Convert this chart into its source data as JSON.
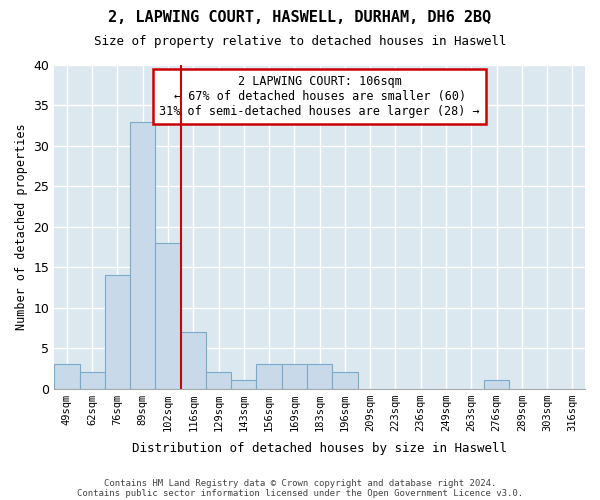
{
  "title": "2, LAPWING COURT, HASWELL, DURHAM, DH6 2BQ",
  "subtitle": "Size of property relative to detached houses in Haswell",
  "xlabel": "Distribution of detached houses by size in Haswell",
  "ylabel": "Number of detached properties",
  "bar_color": "#c8daea",
  "bar_edge_color": "#7aaac8",
  "background_color": "#dce8f0",
  "grid_color": "#ffffff",
  "bins": [
    "49sqm",
    "62sqm",
    "76sqm",
    "89sqm",
    "102sqm",
    "116sqm",
    "129sqm",
    "143sqm",
    "156sqm",
    "169sqm",
    "183sqm",
    "196sqm",
    "209sqm",
    "223sqm",
    "236sqm",
    "249sqm",
    "263sqm",
    "276sqm",
    "289sqm",
    "303sqm",
    "316sqm"
  ],
  "values": [
    3,
    2,
    14,
    33,
    18,
    7,
    2,
    1,
    3,
    3,
    3,
    2,
    0,
    0,
    0,
    0,
    0,
    1,
    0,
    0,
    0
  ],
  "property_bin_index": 4,
  "annotation_title": "2 LAPWING COURT: 106sqm",
  "annotation_left": "← 67% of detached houses are smaller (60)",
  "annotation_right": "31% of semi-detached houses are larger (28) →",
  "vline_color": "#cc0000",
  "annotation_box_color": "#ffffff",
  "annotation_box_edge": "#cc0000",
  "ylim": [
    0,
    40
  ],
  "yticks": [
    0,
    5,
    10,
    15,
    20,
    25,
    30,
    35,
    40
  ],
  "footer1": "Contains HM Land Registry data © Crown copyright and database right 2024.",
  "footer2": "Contains public sector information licensed under the Open Government Licence v3.0."
}
